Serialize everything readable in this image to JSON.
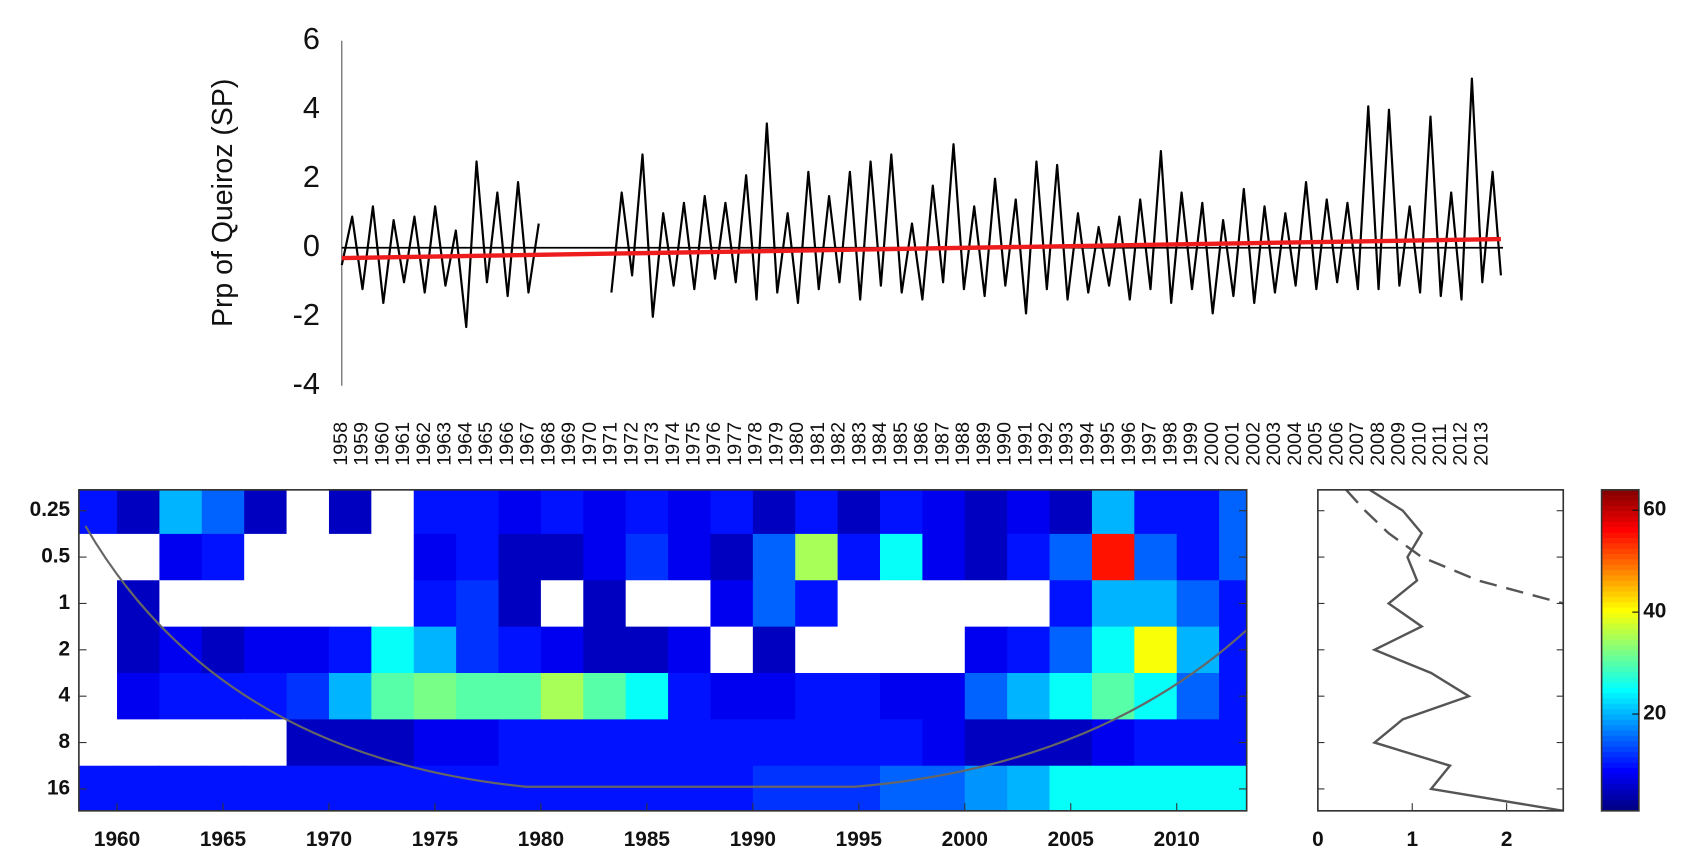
{
  "chart_data": [
    {
      "type": "line",
      "y_label": "Prp of Queiroz (SP)",
      "x": [
        1958,
        1958.5,
        1959,
        1959.5,
        1960,
        1960.5,
        1961,
        1961.5,
        1962,
        1962.5,
        1963,
        1963.5,
        1964,
        1964.5,
        1965,
        1965.5,
        1966,
        1966.5,
        1967,
        1967.5,
        1969,
        1971,
        1971.5,
        1972,
        1972.5,
        1973,
        1973.5,
        1974,
        1974.5,
        1975,
        1975.5,
        1976,
        1976.5,
        1977,
        1977.5,
        1978,
        1978.5,
        1979,
        1979.5,
        1980,
        1980.5,
        1981,
        1981.5,
        1982,
        1982.5,
        1983,
        1983.5,
        1984,
        1984.5,
        1985,
        1985.5,
        1986,
        1986.5,
        1987,
        1987.5,
        1988,
        1988.5,
        1989,
        1989.5,
        1990,
        1990.5,
        1991,
        1991.5,
        1992,
        1992.5,
        1993,
        1993.5,
        1994,
        1994.5,
        1995,
        1995.5,
        1996,
        1996.5,
        1997,
        1997.5,
        1998,
        1998.5,
        1999,
        1999.5,
        2000,
        2000.5,
        2001,
        2001.5,
        2002,
        2002.5,
        2003,
        2003.5,
        2004,
        2004.5,
        2005,
        2005.5,
        2006,
        2006.5,
        2007,
        2007.5,
        2008,
        2008.5,
        2009,
        2009.5,
        2010,
        2010.5,
        2011,
        2011.5,
        2012,
        2012.5,
        2013,
        2013.5,
        2013.9
      ],
      "values": [
        -0.5,
        0.9,
        -1.2,
        1.2,
        -1.6,
        0.8,
        -1.0,
        0.9,
        -1.3,
        1.2,
        -1.1,
        0.5,
        -2.3,
        2.5,
        -1.0,
        1.6,
        -1.4,
        1.9,
        -1.3,
        0.7,
        null,
        -1.3,
        1.6,
        -0.8,
        2.7,
        -2.0,
        1.0,
        -1.1,
        1.3,
        -1.2,
        1.5,
        -0.9,
        1.3,
        -1.0,
        2.1,
        -1.5,
        3.6,
        -1.3,
        1.0,
        -1.6,
        2.2,
        -1.2,
        1.5,
        -1.0,
        2.2,
        -1.5,
        2.5,
        -1.1,
        2.7,
        -1.3,
        0.7,
        -1.5,
        1.8,
        -1.0,
        3.0,
        -1.2,
        1.2,
        -1.4,
        2.0,
        -1.1,
        1.4,
        -1.9,
        2.5,
        -1.2,
        2.4,
        -1.5,
        1.0,
        -1.3,
        0.6,
        -1.1,
        0.9,
        -1.5,
        1.4,
        -1.2,
        2.8,
        -1.6,
        1.6,
        -1.2,
        1.3,
        -1.9,
        0.8,
        -1.4,
        1.7,
        -1.6,
        1.2,
        -1.3,
        1.0,
        -1.1,
        1.9,
        -1.2,
        1.4,
        -1.0,
        1.3,
        -1.2,
        4.1,
        -1.2,
        4.0,
        -1.1,
        1.2,
        -1.3,
        3.8,
        -1.4,
        1.6,
        -1.5,
        4.9,
        -1.0,
        2.2,
        -0.8
      ],
      "color": "#000000",
      "trend": {
        "x": [
          1958,
          2013.9
        ],
        "values": [
          -0.3,
          0.25
        ],
        "color": "#ee1c1c"
      },
      "xlim": [
        1958,
        2014
      ],
      "xticks": [
        1958,
        1959,
        1960,
        1961,
        1962,
        1963,
        1964,
        1965,
        1966,
        1967,
        1968,
        1969,
        1970,
        1971,
        1972,
        1973,
        1974,
        1975,
        1976,
        1977,
        1978,
        1979,
        1980,
        1981,
        1982,
        1983,
        1984,
        1985,
        1986,
        1987,
        1988,
        1989,
        1990,
        1991,
        1992,
        1993,
        1994,
        1995,
        1996,
        1997,
        1998,
        1999,
        2000,
        2001,
        2002,
        2003,
        2004,
        2005,
        2006,
        2007,
        2008,
        2009,
        2010,
        2011,
        2012,
        2013
      ],
      "ylim": [
        -4,
        6
      ],
      "yticks": [
        -4,
        -2,
        0,
        2,
        4,
        6
      ]
    },
    {
      "type": "heatmap",
      "x": [
        1959,
        1961,
        1963,
        1965,
        1967,
        1969,
        1971,
        1973,
        1975,
        1977,
        1979,
        1981,
        1983,
        1985,
        1987,
        1989,
        1991,
        1993,
        1995,
        1997,
        1999,
        2001,
        2003,
        2005,
        2007,
        2009,
        2011,
        2013
      ],
      "y": [
        0.25,
        0.5,
        1,
        2,
        4,
        8,
        16
      ],
      "z": [
        [
          10,
          5,
          20,
          15,
          5,
          0,
          5,
          0,
          10,
          10,
          8,
          10,
          8,
          10,
          8,
          10,
          5,
          10,
          5,
          10,
          8,
          5,
          8,
          5,
          20,
          10,
          10,
          15
        ],
        [
          0,
          0,
          8,
          10,
          0,
          0,
          0,
          0,
          8,
          10,
          5,
          5,
          8,
          12,
          8,
          5,
          15,
          35,
          10,
          25,
          8,
          5,
          10,
          15,
          55,
          15,
          10,
          15
        ],
        [
          0,
          5,
          0,
          0,
          0,
          0,
          0,
          0,
          10,
          12,
          5,
          0,
          5,
          0,
          0,
          8,
          15,
          10,
          0,
          0,
          0,
          0,
          0,
          10,
          20,
          20,
          15,
          10
        ],
        [
          0,
          5,
          8,
          5,
          8,
          8,
          10,
          25,
          20,
          12,
          10,
          8,
          5,
          5,
          8,
          0,
          5,
          0,
          0,
          0,
          0,
          8,
          10,
          15,
          25,
          40,
          20,
          10
        ],
        [
          0,
          8,
          10,
          10,
          10,
          12,
          20,
          30,
          32,
          30,
          30,
          35,
          30,
          25,
          10,
          8,
          8,
          10,
          10,
          8,
          8,
          15,
          20,
          25,
          30,
          25,
          15,
          10
        ],
        [
          0,
          0,
          0,
          0,
          0,
          5,
          5,
          5,
          8,
          8,
          10,
          10,
          10,
          10,
          10,
          10,
          10,
          10,
          10,
          10,
          8,
          5,
          5,
          5,
          8,
          10,
          10,
          10
        ],
        [
          10,
          10,
          10,
          10,
          10,
          10,
          10,
          10,
          10,
          10,
          10,
          10,
          10,
          10,
          10,
          10,
          12,
          12,
          12,
          15,
          15,
          18,
          20,
          25,
          25,
          25,
          25,
          25
        ]
      ],
      "xlim": [
        1958.2,
        2013.3
      ],
      "xticks": [
        1960,
        1965,
        1970,
        1975,
        1980,
        1985,
        1990,
        1995,
        2000,
        2005,
        2010
      ],
      "ylim": [
        0.183,
        22.2
      ],
      "yticks": [
        0.25,
        0.5,
        1,
        2,
        4,
        8,
        16
      ],
      "log_y": true,
      "y_reversed": true,
      "colormap": "jet",
      "clim": [
        1,
        64
      ],
      "cticks": [
        20,
        40,
        60
      ]
    },
    {
      "type": "profile",
      "y": [
        0.183,
        0.25,
        0.35,
        0.5,
        0.71,
        1,
        1.41,
        2,
        2.83,
        4,
        5.66,
        8,
        11.3,
        16,
        22.2
      ],
      "series": [
        {
          "color": "#555555",
          "dashed": false,
          "values": [
            0.55,
            0.9,
            1.1,
            0.95,
            1.05,
            0.75,
            1.1,
            0.6,
            1.2,
            1.6,
            0.9,
            0.6,
            1.4,
            1.2,
            2.6
          ]
        },
        {
          "color": "#555555",
          "dashed": true,
          "values": [
            0.3,
            0.5,
            0.75,
            1.1,
            1.7,
            2.6,
            null,
            null,
            null,
            null,
            null,
            null,
            null,
            null,
            null
          ]
        }
      ],
      "xlim": [
        0,
        2.6
      ],
      "xticks": [
        0,
        1,
        2
      ],
      "ylim": [
        0.183,
        22.2
      ],
      "yticks": [
        0.25,
        0.5,
        1,
        2,
        4,
        8,
        16
      ],
      "log_y": true,
      "y_reversed": true
    }
  ]
}
